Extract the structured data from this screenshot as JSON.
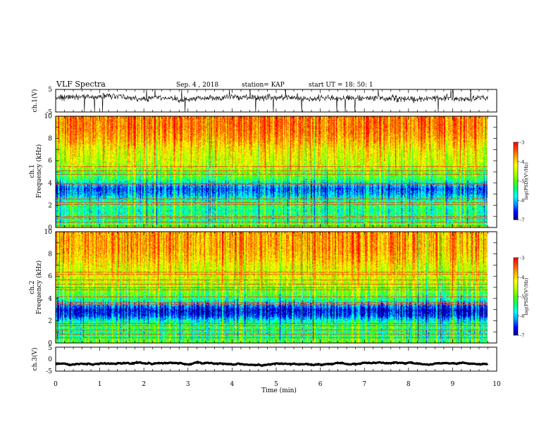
{
  "header": {
    "title": "VLF Spectra",
    "date": "Sep. 4  , 2018",
    "station": "station= KAP",
    "start": "start  UT  =   18: 50: 1"
  },
  "colors": {
    "spectrum": [
      "#00008b",
      "#0000ff",
      "#0096ff",
      "#00ffff",
      "#00ff7f",
      "#55ff00",
      "#b4ff00",
      "#ffff00",
      "#ffb400",
      "#ff5000",
      "#ff0000",
      "#ffffff"
    ],
    "trace": "#000000",
    "hline": "#ff3c14"
  },
  "chart_data": {
    "type": "heatmap",
    "xlabel": "Time  (min)",
    "xlim": [
      0,
      10
    ],
    "xticks": [
      "0",
      "1",
      "2",
      "3",
      "4",
      "5",
      "6",
      "7",
      "8",
      "9",
      "10"
    ],
    "data_end_min": 9.8,
    "panels": [
      {
        "kind": "waveform",
        "ylabel": "ch.1(V)",
        "ylim": [
          -5,
          5
        ],
        "yticks": [
          "5",
          "-5"
        ],
        "mean": 1.4,
        "spread": 2.3
      },
      {
        "kind": "spectrogram",
        "ylabel": "ch.1\nFrequency  (kHz)",
        "ylim": [
          0,
          10
        ],
        "yticks": [
          "0",
          "2",
          "4",
          "6",
          "8",
          "10"
        ],
        "profile_khz": [
          0,
          0.5,
          1,
          1.5,
          2,
          2.5,
          3,
          3.5,
          4,
          4.5,
          5,
          5.5,
          6,
          6.5,
          7,
          7.5,
          8,
          8.5,
          9,
          9.5,
          10
        ],
        "profile_level": [
          -4.6,
          -5.4,
          -5.3,
          -5.5,
          -5.3,
          -5.5,
          -6.0,
          -6.3,
          -5.7,
          -5.1,
          -5.0,
          -4.6,
          -4.5,
          -4.4,
          -4.3,
          -4.1,
          -3.9,
          -3.8,
          -3.7,
          -3.7,
          -3.7
        ],
        "lines_khz": [
          0.2,
          0.5,
          0.9,
          1.0,
          2.1,
          2.3,
          2.6,
          3.9,
          4.0,
          4.8,
          5.1,
          5.5
        ],
        "colorbar": {
          "label": "log(PSD)(V²/Hz)",
          "ticks": [
            "-3",
            "-4",
            "-5",
            "-6",
            "-7"
          ],
          "range": [
            -7,
            -3
          ]
        }
      },
      {
        "kind": "spectrogram",
        "ylabel": "ch.2\nFrequency  (kHz)",
        "ylim": [
          0,
          10
        ],
        "yticks": [
          "0",
          "2",
          "4",
          "6",
          "8",
          "10"
        ],
        "profile_khz": [
          0,
          0.5,
          1,
          1.5,
          2,
          2.5,
          3,
          3.5,
          4,
          4.5,
          5,
          5.5,
          6,
          6.5,
          7,
          7.5,
          8,
          8.5,
          9,
          9.5,
          10
        ],
        "profile_level": [
          -4.9,
          -5.3,
          -5.4,
          -5.2,
          -5.6,
          -6.4,
          -6.6,
          -6.0,
          -5.3,
          -5.0,
          -4.8,
          -4.6,
          -4.4,
          -4.4,
          -4.3,
          -4.1,
          -4.0,
          -3.9,
          -3.9,
          -3.9,
          -3.9
        ],
        "lines_khz": [
          0.5,
          0.8,
          1.2,
          1.6,
          1.8,
          3.5,
          3.7,
          4.2,
          4.8,
          5.0,
          5.3,
          5.7,
          6.2,
          6.4
        ],
        "colorbar": {
          "label": "log(PSD)(V²/Hz)",
          "ticks": [
            "-3",
            "-4",
            "-5",
            "-6",
            "-7"
          ],
          "range": [
            -7,
            -3
          ]
        }
      },
      {
        "kind": "waveform",
        "ylabel": "ch.3(V)",
        "ylim": [
          -5,
          5
        ],
        "yticks": [
          "5",
          "0",
          "-5"
        ],
        "mean": -1.8,
        "spread": 0.12
      }
    ]
  }
}
